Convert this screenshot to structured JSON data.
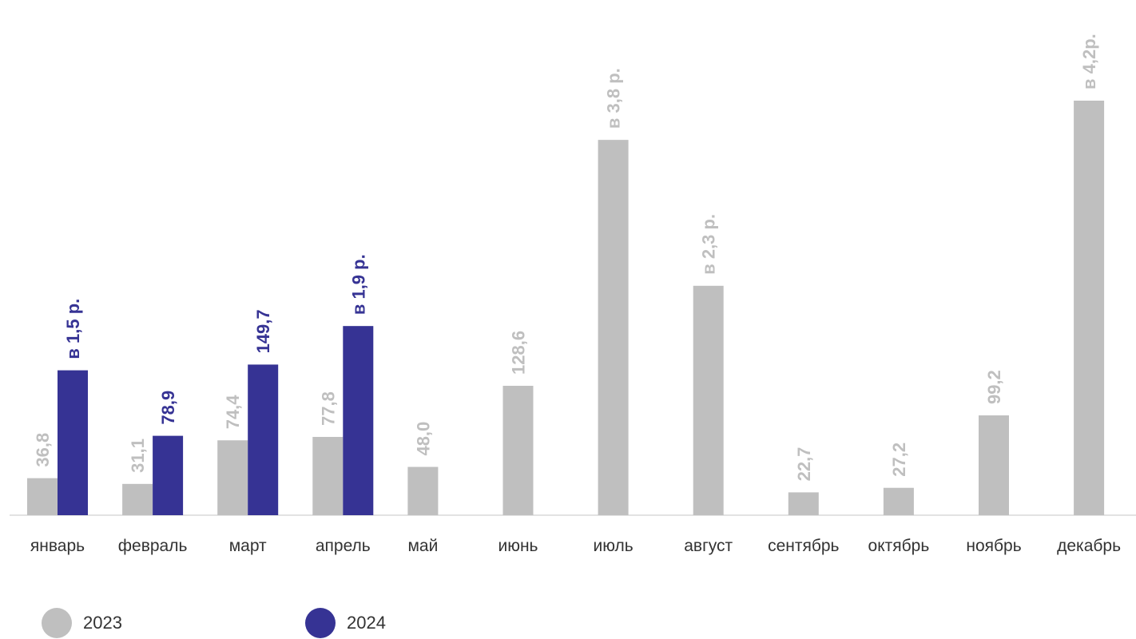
{
  "chart_data": {
    "type": "bar",
    "categories": [
      "январь",
      "февраль",
      "март",
      "апрель",
      "май",
      "июнь",
      "июль",
      "август",
      "сентябрь",
      "октябрь",
      "ноябрь",
      "декабрь"
    ],
    "series": [
      {
        "name": "2023",
        "color": "#bfbfbf",
        "values": [
          36.8,
          31.1,
          74.4,
          77.8,
          48.0,
          128.6,
          373.0,
          228.0,
          22.7,
          27.2,
          99.2,
          412.0
        ],
        "labels": [
          "36,8",
          "31,1",
          "74,4",
          "77,8",
          "48,0",
          "128,6",
          "в 3,8 р.",
          "в 2,3 р.",
          "22,7",
          "27,2",
          "99,2",
          "в 4,2р."
        ]
      },
      {
        "name": "2024",
        "color": "#363394",
        "values": [
          144.0,
          78.9,
          149.7,
          188.0,
          null,
          null,
          null,
          null,
          null,
          null,
          null,
          null
        ],
        "labels": [
          "в 1,5 р.",
          "78,9",
          "149,7",
          "в 1,9 р.",
          null,
          null,
          null,
          null,
          null,
          null,
          null,
          null
        ]
      }
    ],
    "ylim": [
      0,
      412
    ],
    "grid": false,
    "legend_position": "bottom-left"
  }
}
